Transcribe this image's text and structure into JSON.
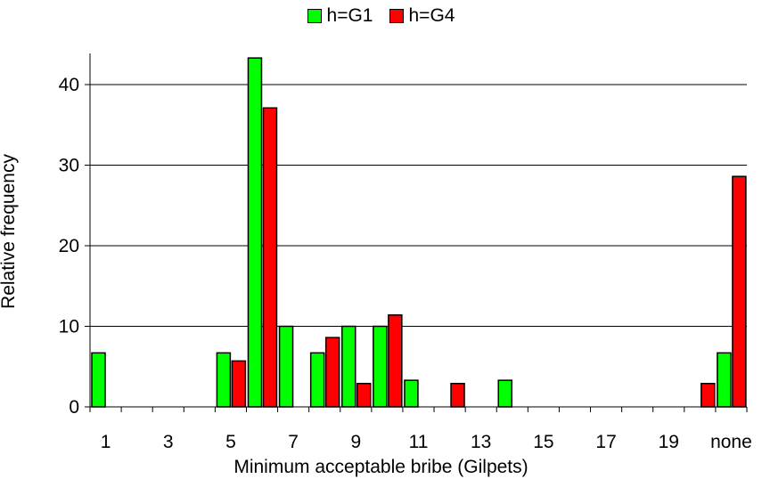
{
  "chart_data": {
    "type": "bar",
    "title": "",
    "xlabel": "Minimum acceptable bribe (Gilpets)",
    "ylabel": "Relative frequency",
    "ylim": [
      0,
      44
    ],
    "yticks": [
      0,
      10,
      20,
      30,
      40
    ],
    "grid": "horizontal",
    "legend": "top-center",
    "categories": [
      "1",
      "2",
      "3",
      "4",
      "5",
      "6",
      "7",
      "8",
      "9",
      "10",
      "11",
      "12",
      "13",
      "14",
      "15",
      "16",
      "17",
      "18",
      "19",
      "20",
      "none"
    ],
    "xtick_labels": [
      "1",
      "3",
      "5",
      "7",
      "9",
      "11",
      "13",
      "15",
      "17",
      "19",
      "none"
    ],
    "series": [
      {
        "name": "h=G1",
        "color": "#00ff00",
        "values": [
          6.7,
          0,
          0,
          0,
          6.7,
          43.3,
          10,
          6.7,
          10,
          10,
          3.3,
          0,
          0,
          3.3,
          0,
          0,
          0,
          0,
          0,
          0,
          6.7
        ]
      },
      {
        "name": "h=G4",
        "color": "#ff0000",
        "values": [
          0,
          0,
          0,
          0,
          5.7,
          37.1,
          0,
          8.6,
          2.9,
          11.4,
          0,
          2.9,
          0,
          0,
          0,
          0,
          0,
          0,
          0,
          2.9,
          28.6
        ]
      }
    ]
  }
}
